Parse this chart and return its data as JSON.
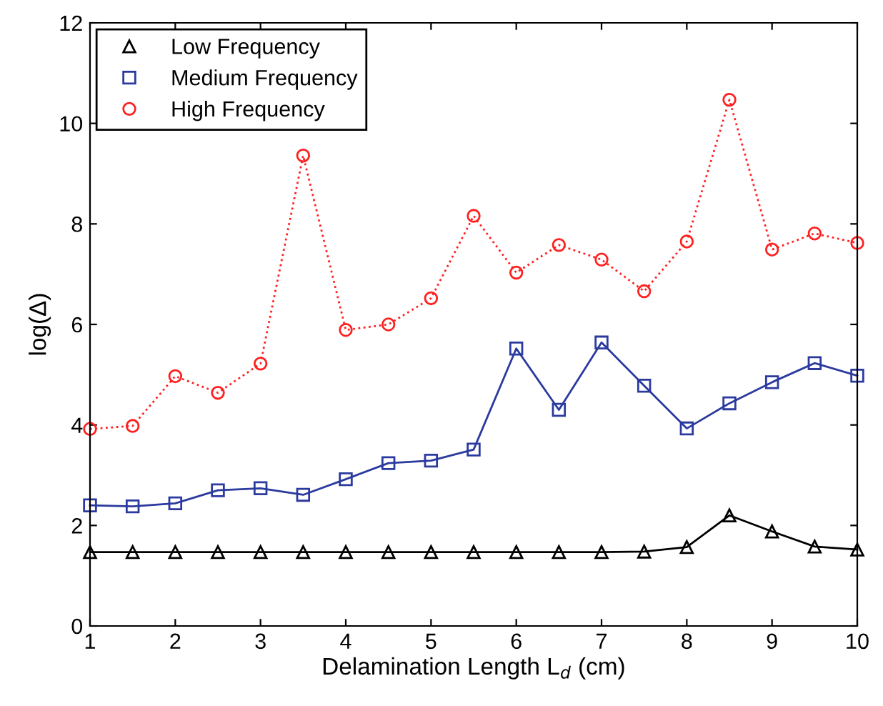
{
  "chart_data": {
    "type": "line",
    "xlabel": "Delamination Length L$_{d}$ (cm)",
    "ylabel": "log(Δ)",
    "x": [
      1,
      1.5,
      2,
      2.5,
      3,
      3.5,
      4,
      4.5,
      5,
      5.5,
      6,
      6.5,
      7,
      7.5,
      8,
      8.5,
      9,
      9.5,
      10
    ],
    "series": [
      {
        "name": "Low Frequency",
        "color": "#000000",
        "marker": "triangle",
        "line_style": "solid",
        "values": [
          1.47,
          1.47,
          1.47,
          1.47,
          1.47,
          1.47,
          1.47,
          1.47,
          1.47,
          1.47,
          1.47,
          1.47,
          1.47,
          1.48,
          1.57,
          2.2,
          1.88,
          1.58,
          1.52
        ]
      },
      {
        "name": "Medium Frequency",
        "color": "#2b3a9e",
        "marker": "square",
        "line_style": "solid",
        "values": [
          2.4,
          2.38,
          2.44,
          2.7,
          2.74,
          2.61,
          2.92,
          3.24,
          3.29,
          3.51,
          5.52,
          4.3,
          5.64,
          4.78,
          3.93,
          4.43,
          4.85,
          5.23,
          4.98
        ]
      },
      {
        "name": "High Frequency",
        "color": "#ff2020",
        "marker": "circle",
        "line_style": "dotted",
        "values": [
          3.92,
          3.98,
          4.97,
          4.64,
          5.22,
          9.36,
          5.89,
          6.0,
          6.52,
          8.16,
          7.03,
          7.58,
          7.29,
          6.66,
          7.65,
          10.47,
          7.49,
          7.81,
          7.62
        ]
      }
    ],
    "xlim": [
      1,
      10
    ],
    "ylim": [
      0,
      12
    ],
    "xticks": [
      1,
      2,
      3,
      4,
      5,
      6,
      7,
      8,
      9,
      10
    ],
    "yticks": [
      0,
      2,
      4,
      6,
      8,
      10,
      12
    ],
    "grid": false,
    "legend": "top left"
  }
}
